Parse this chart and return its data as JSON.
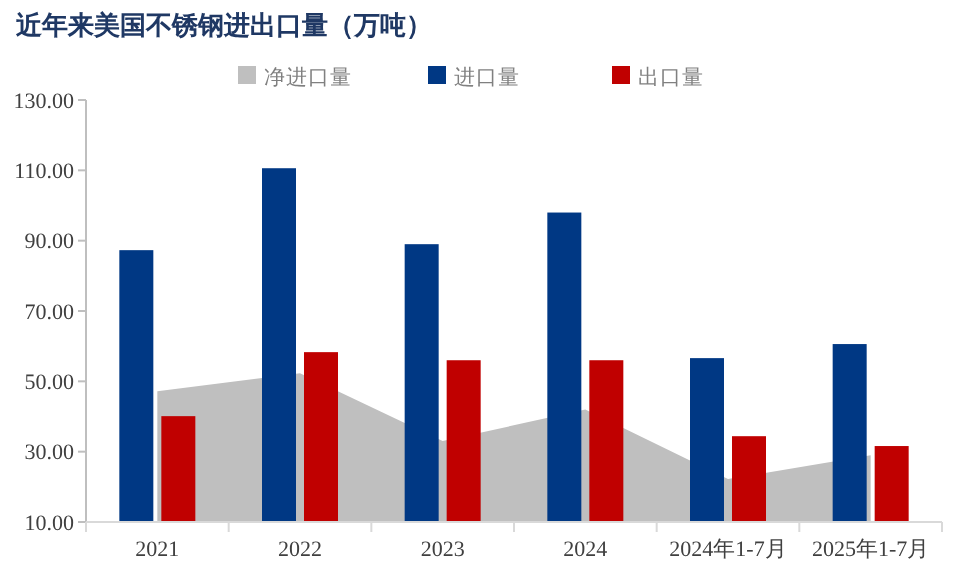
{
  "chart_data": {
    "type": "bar",
    "title": "近年来美国不锈钢进出口量（万吨）",
    "categories": [
      "2021",
      "2022",
      "2023",
      "2024",
      "2024年1-7月",
      "2025年1-7月"
    ],
    "series": [
      {
        "name": "净进口量",
        "type": "area",
        "color": "#bfbfbf",
        "values": [
          47.2,
          52.3,
          33.0,
          42.0,
          22.2,
          29.0
        ]
      },
      {
        "name": "进口量",
        "color": "#003884",
        "values": [
          87.3,
          110.6,
          89.0,
          98.0,
          56.6,
          60.6
        ]
      },
      {
        "name": "出口量",
        "color": "#c00000",
        "values": [
          40.1,
          58.3,
          56.0,
          56.0,
          34.4,
          31.6
        ]
      }
    ],
    "ylim": [
      10,
      130
    ],
    "yticks": [
      {
        "value": 10,
        "label": "10.00"
      },
      {
        "value": 30,
        "label": "30.00"
      },
      {
        "value": 50,
        "label": "50.00"
      },
      {
        "value": 70,
        "label": "70.00"
      },
      {
        "value": 90,
        "label": "90.00"
      },
      {
        "value": 110,
        "label": "110.00"
      },
      {
        "value": 130,
        "label": "130.00"
      }
    ],
    "grid": false,
    "legend": "top"
  }
}
